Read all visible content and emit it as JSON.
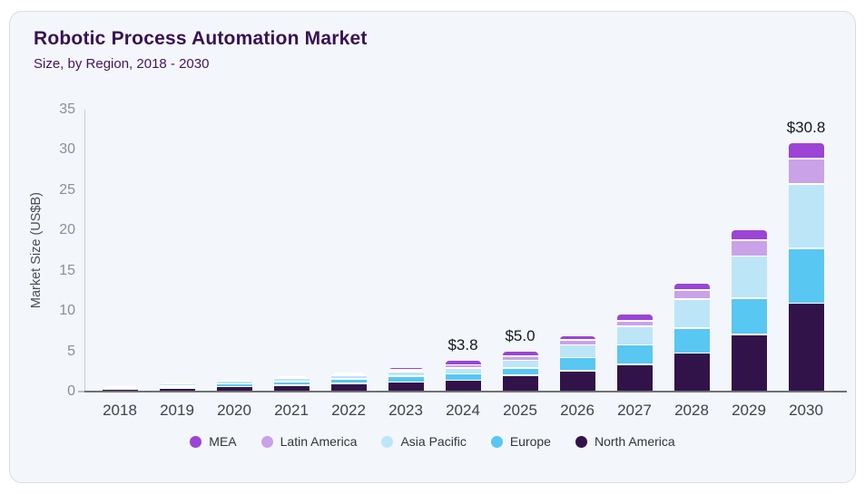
{
  "chart_data": {
    "type": "bar",
    "stacked": true,
    "title": "Robotic Process Automation Market",
    "subtitle": "Size, by Region, 2018 - 2030",
    "ylabel": "Market Size (US$B)",
    "xlabel": "",
    "ylim": [
      0,
      35
    ],
    "yticks": [
      0,
      5,
      10,
      15,
      20,
      25,
      30,
      35
    ],
    "grid": false,
    "legend_position": "bottom",
    "categories": [
      "2018",
      "2019",
      "2020",
      "2021",
      "2022",
      "2023",
      "2024",
      "2025",
      "2026",
      "2027",
      "2028",
      "2029",
      "2030"
    ],
    "series": [
      {
        "name": "North America",
        "color": "#321349",
        "values": [
          0.3,
          0.45,
          0.6,
          0.8,
          1.0,
          1.2,
          1.4,
          2.0,
          2.6,
          3.4,
          4.8,
          7.1,
          11.0
        ]
      },
      {
        "name": "Europe",
        "color": "#58c7f2",
        "values": [
          0.15,
          0.25,
          0.35,
          0.45,
          0.55,
          0.7,
          0.8,
          0.9,
          1.6,
          2.4,
          3.1,
          4.5,
          6.8
        ]
      },
      {
        "name": "Asia Pacific",
        "color": "#bde5f8",
        "values": [
          0.15,
          0.25,
          0.35,
          0.4,
          0.5,
          0.6,
          0.7,
          1.0,
          1.6,
          2.3,
          3.6,
          5.2,
          8.0
        ]
      },
      {
        "name": "Latin America",
        "color": "#caa2e8",
        "values": [
          0.06,
          0.09,
          0.12,
          0.15,
          0.2,
          0.22,
          0.4,
          0.5,
          0.6,
          0.7,
          1.1,
          2.0,
          3.1
        ]
      },
      {
        "name": "MEA",
        "color": "#9b44d6",
        "values": [
          0.04,
          0.06,
          0.08,
          0.1,
          0.15,
          0.18,
          0.5,
          0.6,
          0.5,
          0.8,
          0.8,
          1.2,
          1.9
        ]
      }
    ],
    "totals": [
      0.7,
      1.1,
      1.5,
      1.9,
      2.4,
      2.9,
      3.8,
      5.0,
      6.9,
      9.6,
      13.4,
      20.0,
      30.8
    ],
    "value_labels": [
      {
        "category": "2024",
        "text": "$3.8"
      },
      {
        "category": "2025",
        "text": "$5.0"
      },
      {
        "category": "2030",
        "text": "$30.8"
      }
    ],
    "legend": [
      "MEA",
      "Latin America",
      "Asia Pacific",
      "Europe",
      "North America"
    ]
  }
}
